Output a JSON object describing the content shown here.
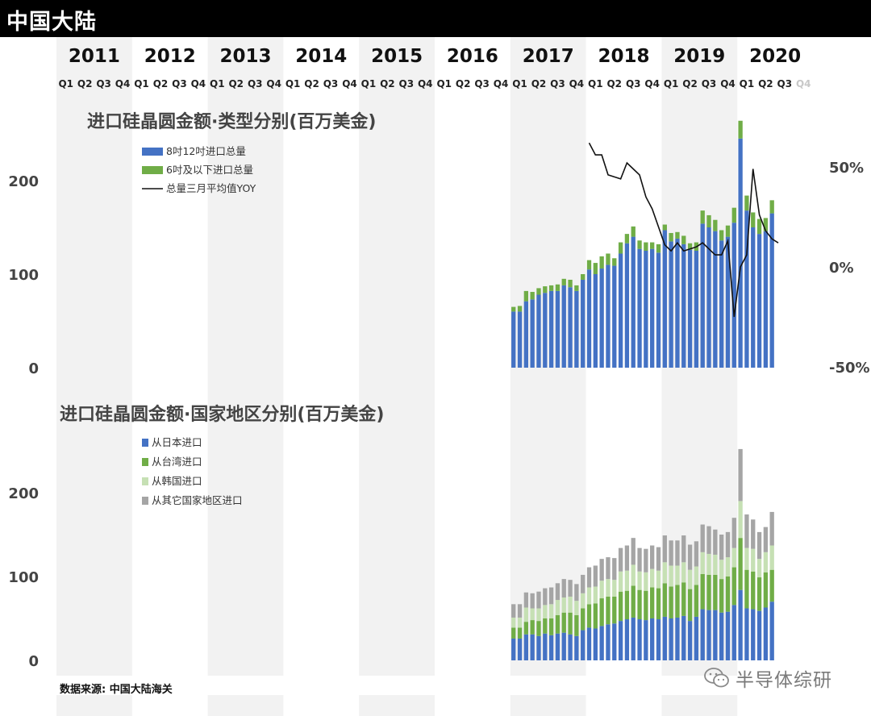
{
  "page_title": "中国大陆",
  "source_note": "数据来源: 中国大陆海关",
  "watermark": "半导体综研",
  "years": [
    "2011",
    "2012",
    "2013",
    "2014",
    "2015",
    "2016",
    "2017",
    "2018",
    "2019",
    "2020"
  ],
  "quarters": [
    "Q1",
    "Q2",
    "Q3",
    "Q4"
  ],
  "colors": {
    "blue": "#4472c4",
    "green": "#70ad47",
    "light_green": "#c6e0b4",
    "gray": "#a5a5a5",
    "line": "#111111",
    "band": "#f2f2f2",
    "future": "#c8c8c8"
  },
  "chart_data": [
    {
      "type": "bar",
      "stacked": true,
      "title": "进口硅晶圆金额·类型分别(百万美金)",
      "x_unit": "month",
      "x_start": "2017-01",
      "y_ticks": [
        0,
        100,
        200
      ],
      "ylim": [
        0,
        255
      ],
      "series": [
        {
          "name": "8吋12吋进口总量",
          "color_key": "blue",
          "values": [
            60,
            60,
            71,
            73,
            78,
            80,
            82,
            82,
            88,
            86,
            82,
            94,
            105,
            100,
            106,
            110,
            109,
            122,
            133,
            140,
            127,
            125,
            127,
            123,
            147,
            135,
            138,
            132,
            126,
            125,
            154,
            150,
            146,
            136,
            140,
            155,
            245,
            168,
            150,
            143,
            146,
            165
          ]
        },
        {
          "name": "6吋及以下进口总量",
          "color_key": "green",
          "values": [
            5,
            6,
            11,
            8,
            7,
            7,
            6,
            7,
            7,
            8,
            6,
            6,
            10,
            12,
            13,
            12,
            8,
            12,
            10,
            11,
            9,
            9,
            7,
            9,
            6,
            9,
            7,
            9,
            7,
            9,
            14,
            13,
            12,
            11,
            12,
            16,
            19,
            16,
            16,
            16,
            14,
            14
          ]
        }
      ],
      "line_series": {
        "name": "总量三月平均值YOY",
        "y2_ticks": [
          "50%",
          "0%",
          "-50%"
        ],
        "y2lim": [
          -50,
          50
        ],
        "x_start": "2018-01",
        "values": [
          62,
          56,
          56,
          46,
          45,
          44,
          52,
          49,
          46,
          35,
          29,
          20,
          11,
          8,
          12,
          8,
          9,
          10,
          12,
          9,
          6,
          6,
          13,
          -25,
          0,
          6,
          49,
          26,
          18,
          14,
          12
        ]
      }
    },
    {
      "type": "bar",
      "stacked": true,
      "title": "进口硅晶圆金额·国家地区分别(百万美金)",
      "x_unit": "month",
      "x_start": "2017-01",
      "y_ticks": [
        0,
        100,
        200
      ],
      "ylim": [
        0,
        255
      ],
      "series": [
        {
          "name": "从日本进口",
          "color_key": "blue",
          "values": [
            26,
            26,
            31,
            31,
            29,
            32,
            30,
            32,
            33,
            31,
            29,
            36,
            39,
            38,
            41,
            43,
            44,
            47,
            49,
            51,
            49,
            48,
            50,
            49,
            52,
            50,
            51,
            53,
            47,
            52,
            61,
            60,
            60,
            57,
            58,
            66,
            84,
            62,
            61,
            59,
            63,
            70
          ]
        },
        {
          "name": "从台湾进口",
          "color_key": "green",
          "values": [
            13,
            13,
            15,
            17,
            18,
            18,
            20,
            22,
            24,
            26,
            25,
            26,
            28,
            30,
            33,
            33,
            32,
            35,
            34,
            38,
            35,
            35,
            37,
            37,
            40,
            38,
            39,
            40,
            38,
            38,
            42,
            42,
            42,
            40,
            42,
            45,
            62,
            46,
            45,
            40,
            42,
            38
          ]
        },
        {
          "name": "从韩国进口",
          "color_key": "light_green",
          "values": [
            12,
            12,
            17,
            14,
            15,
            16,
            17,
            18,
            18,
            19,
            17,
            18,
            20,
            20,
            21,
            21,
            20,
            24,
            24,
            25,
            22,
            22,
            22,
            21,
            25,
            25,
            23,
            24,
            23,
            22,
            26,
            25,
            24,
            23,
            23,
            23,
            44,
            26,
            27,
            22,
            24,
            29
          ]
        },
        {
          "name": "从其它国家地区进口",
          "color_key": "gray",
          "values": [
            16,
            16,
            18,
            18,
            20,
            20,
            20,
            20,
            22,
            20,
            20,
            22,
            24,
            25,
            26,
            26,
            26,
            28,
            30,
            32,
            28,
            28,
            28,
            28,
            32,
            30,
            30,
            32,
            30,
            30,
            33,
            33,
            30,
            30,
            30,
            36,
            62,
            40,
            35,
            32,
            30,
            40
          ]
        }
      ]
    }
  ]
}
